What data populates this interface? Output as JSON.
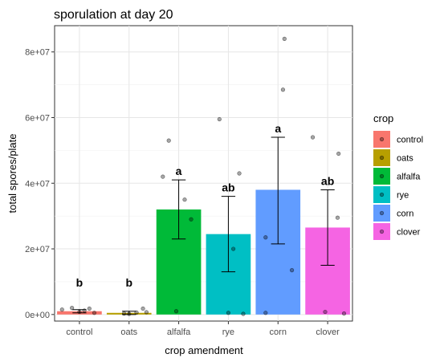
{
  "chart_data": {
    "type": "bar",
    "title": "sporulation at day 20",
    "xlabel": "crop amendment",
    "ylabel": "total spores/plate",
    "ylim": [
      -2000000,
      88000000
    ],
    "y_ticks": [
      0,
      20000000,
      40000000,
      60000000,
      80000000
    ],
    "y_tick_labels": [
      "0e+00",
      "2e+07",
      "4e+07",
      "6e+07",
      "8e+07"
    ],
    "categories": [
      "control",
      "oats",
      "alfalfa",
      "rye",
      "corn",
      "clover"
    ],
    "colors": [
      "#F8766D",
      "#B79F00",
      "#00BA38",
      "#00BFC4",
      "#619CFF",
      "#F564E3"
    ],
    "values": [
      1000000,
      500000,
      32000000,
      24500000,
      38000000,
      26500000
    ],
    "error_bars": [
      {
        "low": 500000,
        "high": 1500000
      },
      {
        "low": 0,
        "high": 1000000
      },
      {
        "low": 23000000,
        "high": 41000000
      },
      {
        "low": 13000000,
        "high": 36000000
      },
      {
        "low": 21500000,
        "high": 54000000
      },
      {
        "low": 15000000,
        "high": 38000000
      }
    ],
    "points": [
      [
        1500000,
        2000000,
        800000,
        1800000,
        500000,
        1200000
      ],
      [
        300000,
        600000,
        1800000,
        200000,
        700000
      ],
      [
        53000000,
        42000000,
        35000000,
        29000000,
        1000000
      ],
      [
        59500000,
        43000000,
        20000000,
        500000,
        200000
      ],
      [
        84000000,
        68500000,
        23500000,
        13500000,
        500000
      ],
      [
        54000000,
        49000000,
        29500000,
        800000,
        300000
      ]
    ],
    "point_offsets": [
      [
        -0.35,
        -0.15,
        0.0,
        0.2,
        0.3,
        0.1
      ],
      [
        -0.1,
        0.15,
        0.28,
        0.0,
        0.35
      ],
      [
        -0.2,
        -0.32,
        0.12,
        0.25,
        -0.05
      ],
      [
        -0.18,
        0.22,
        0.1,
        0.0,
        0.3
      ],
      [
        0.13,
        0.1,
        -0.25,
        0.28,
        -0.25
      ],
      [
        -0.3,
        0.22,
        0.2,
        -0.05,
        0.33
      ]
    ],
    "significance_labels": [
      "b",
      "b",
      "a",
      "ab",
      "a",
      "ab"
    ],
    "legend": {
      "title": "crop",
      "entries": [
        "control",
        "oats",
        "alfalfa",
        "rye",
        "corn",
        "clover"
      ],
      "placement": "right"
    },
    "grid": true
  }
}
